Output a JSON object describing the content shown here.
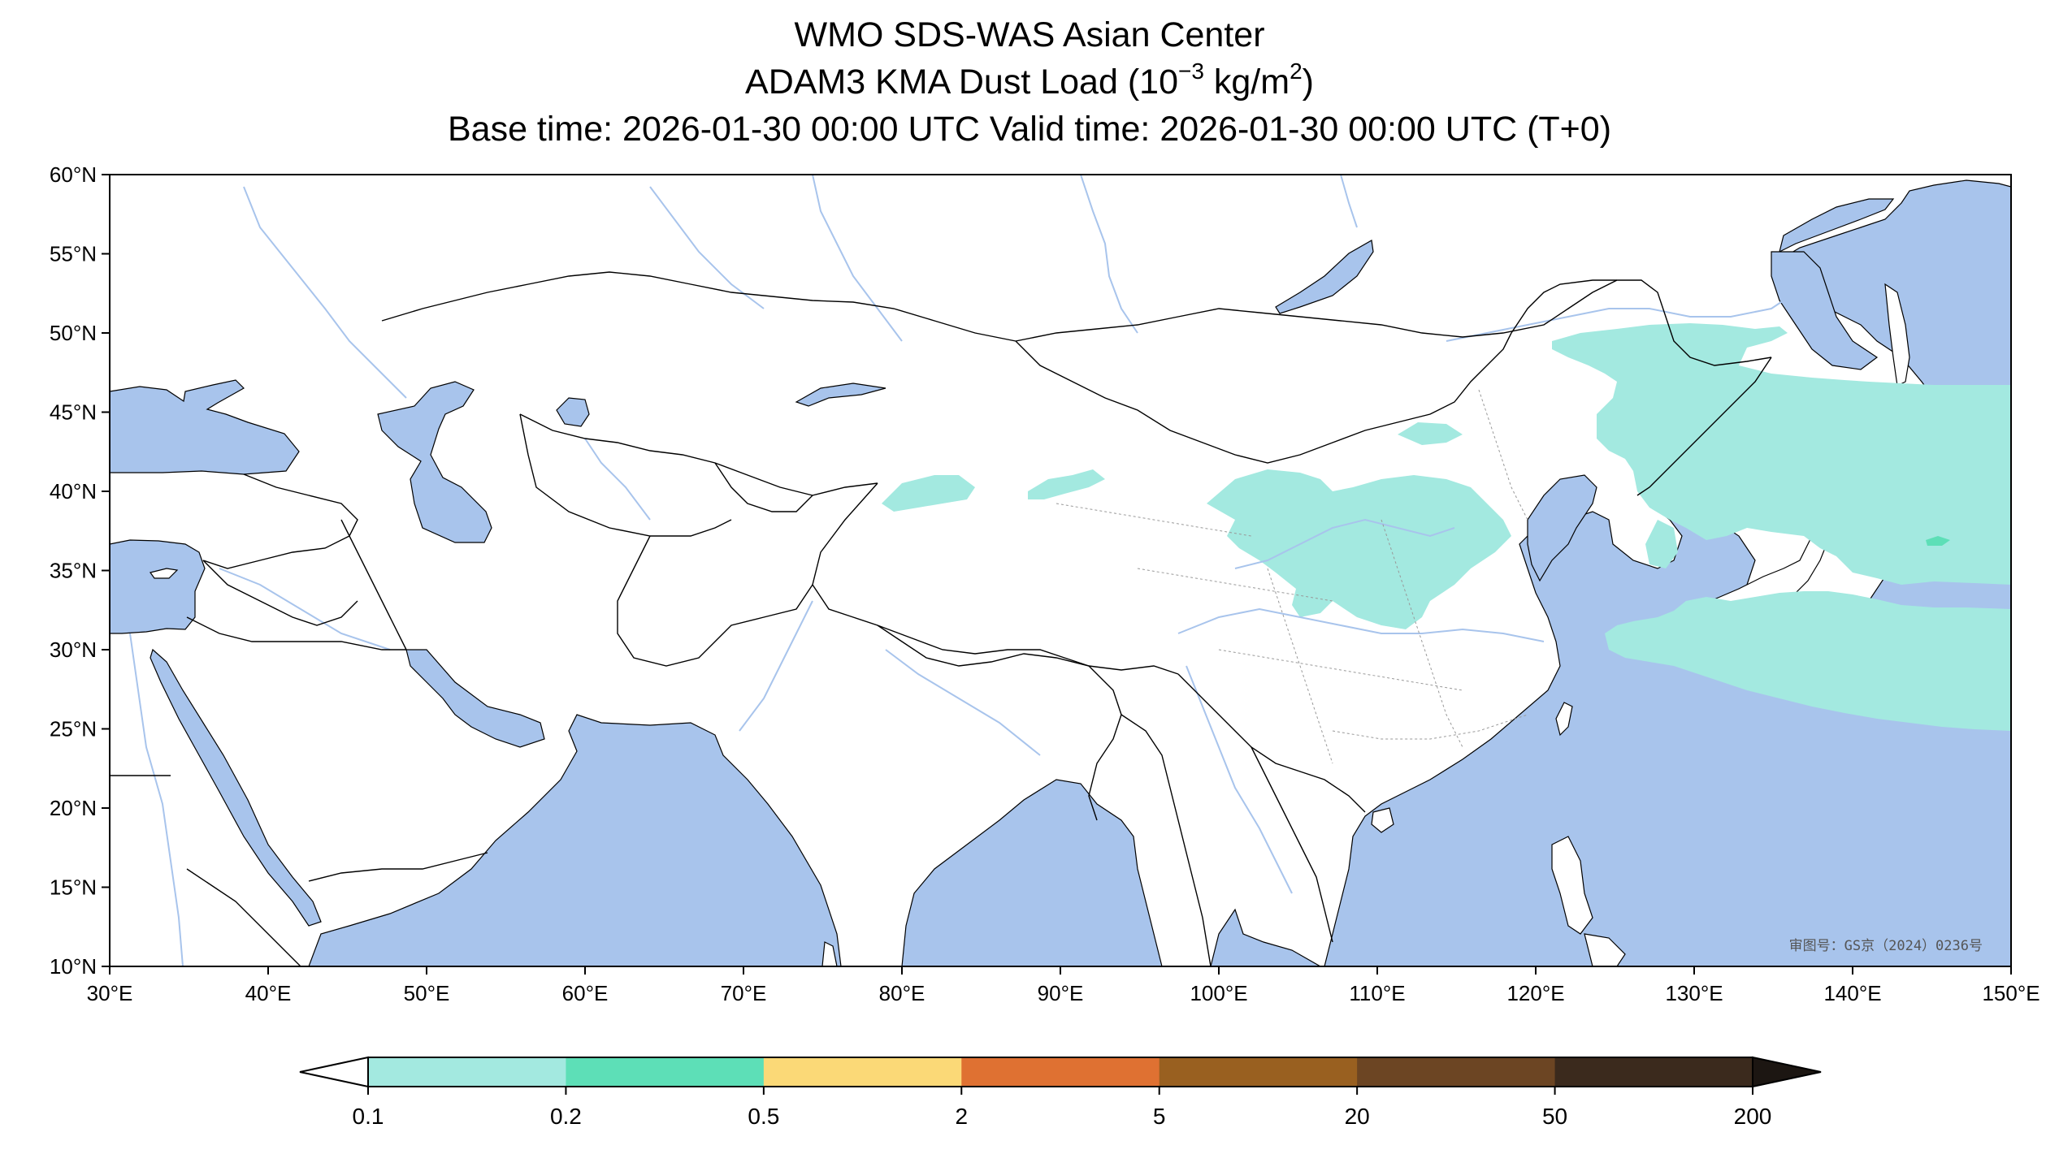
{
  "title": {
    "line1": "WMO SDS-WAS Asian Center",
    "line2_prefix": "ADAM3 KMA Dust Load (10",
    "line2_exp": "−3",
    "line2_units": " kg/m",
    "line2_unit_exp": "2",
    "line2_suffix": ")",
    "line3": "Base time: 2026-01-30 00:00 UTC Valid time: 2026-01-30 00:00 UTC (T+0)"
  },
  "map": {
    "lon_range": [
      30,
      150
    ],
    "lat_range": [
      10,
      60
    ],
    "lon_ticks": [
      {
        "value": 30,
        "label": "30°E"
      },
      {
        "value": 40,
        "label": "40°E"
      },
      {
        "value": 50,
        "label": "50°E"
      },
      {
        "value": 60,
        "label": "60°E"
      },
      {
        "value": 70,
        "label": "70°E"
      },
      {
        "value": 80,
        "label": "80°E"
      },
      {
        "value": 90,
        "label": "90°E"
      },
      {
        "value": 100,
        "label": "100°E"
      },
      {
        "value": 110,
        "label": "110°E"
      },
      {
        "value": 120,
        "label": "120°E"
      },
      {
        "value": 130,
        "label": "130°E"
      },
      {
        "value": 140,
        "label": "140°E"
      },
      {
        "value": 150,
        "label": "150°E"
      }
    ],
    "lat_ticks": [
      {
        "value": 60,
        "label": "60°N"
      },
      {
        "value": 55,
        "label": "55°N"
      },
      {
        "value": 50,
        "label": "50°N"
      },
      {
        "value": 45,
        "label": "45°N"
      },
      {
        "value": 40,
        "label": "40°N"
      },
      {
        "value": 35,
        "label": "35°N"
      },
      {
        "value": 30,
        "label": "30°N"
      },
      {
        "value": 25,
        "label": "25°N"
      },
      {
        "value": 20,
        "label": "20°N"
      },
      {
        "value": 15,
        "label": "15°N"
      },
      {
        "value": 10,
        "label": "10°N"
      }
    ],
    "review_number": "审图号：GS京（2024）0236号",
    "colors": {
      "water": "#a8c4ec",
      "land": "#ffffff",
      "border": "#000000",
      "river": "#a8c4ec",
      "dust_low": "#a3e9e0"
    }
  },
  "colorbar": {
    "boundaries": [
      "0.1",
      "0.2",
      "0.5",
      "2",
      "5",
      "20",
      "50",
      "200"
    ],
    "colors": [
      "#a3e9e0",
      "#5ddfb7",
      "#fbd977",
      "#df7132",
      "#996020",
      "#6c4523",
      "#3b2a1d"
    ],
    "under_color": "#ffffff",
    "over_color": "#1c1612"
  }
}
